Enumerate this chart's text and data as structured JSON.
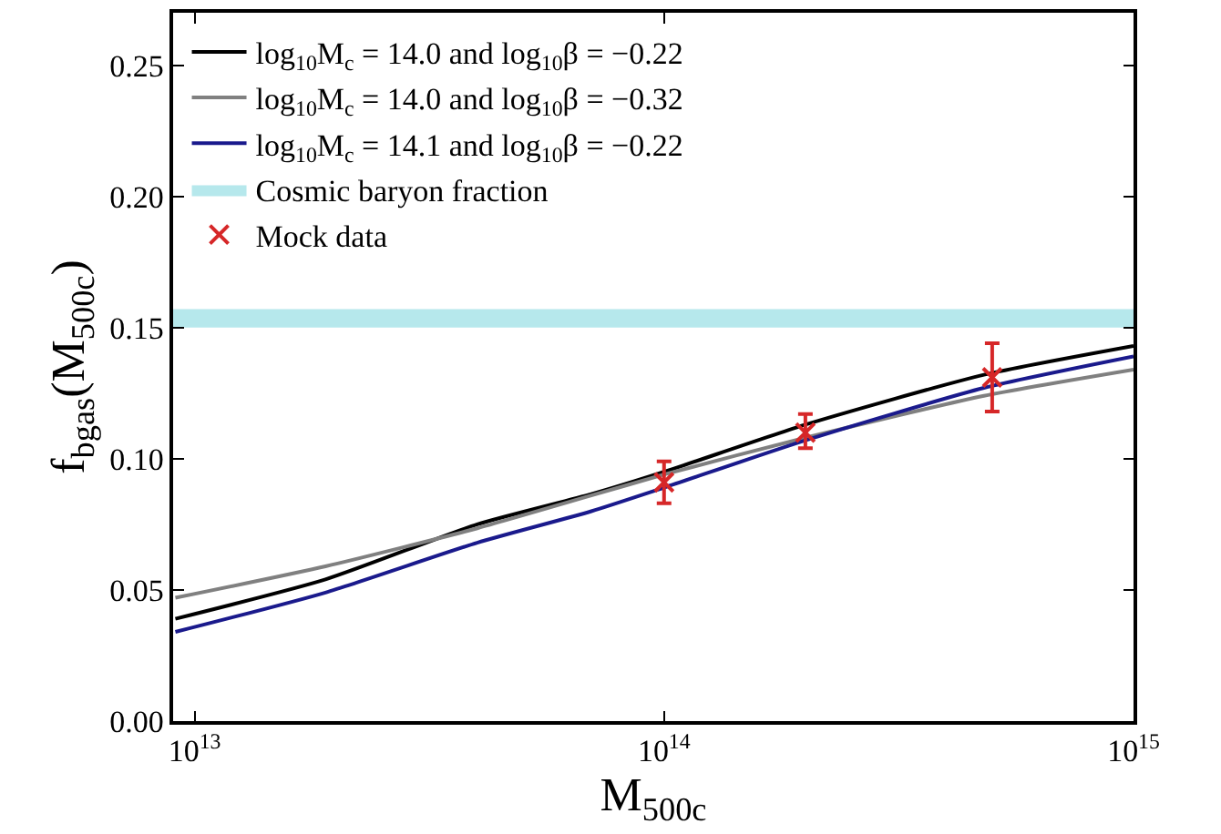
{
  "chart_data": {
    "type": "line",
    "xlabel": "M$_{500c}$",
    "ylabel": "f$_{bgas}$(M$_{500c}$)",
    "log": "x",
    "xlim": [
      9000000000000.0,
      1000000000000000.0
    ],
    "xticks": [
      {
        "value": 10000000000000.0,
        "label": "10$^{13}$"
      },
      {
        "value": 100000000000000.0,
        "label": "10$^{14}$"
      },
      {
        "value": 1000000000000000.0,
        "label": "10$^{15}$"
      }
    ],
    "ylim": [
      0,
      0.27
    ],
    "yticks": [
      {
        "value": 0,
        "label": "0.00"
      },
      {
        "value": 0.05,
        "label": "0.05"
      },
      {
        "value": 0.1,
        "label": "0.10"
      },
      {
        "value": 0.15,
        "label": "0.15"
      },
      {
        "value": 0.2,
        "label": "0.20"
      },
      {
        "value": 0.25,
        "label": "0.25"
      }
    ],
    "legend": "top left",
    "marker": "none",
    "line_style": "solid",
    "x": [
      9100000000000.0,
      19000000000000.0,
      40000000000000.0,
      70000000000000.0,
      100000000000000.0,
      200000000000000.0,
      480000000000000.0,
      1000000000000000.0
    ],
    "series": [
      {
        "name": "log$_{10}$M$_{c}$ = 14.0 and log$_{10}$β = −0.22",
        "color": "#000000",
        "values": [
          0.039,
          0.054,
          0.075,
          0.0865,
          0.095,
          0.113,
          0.132,
          0.143
        ]
      },
      {
        "name": "log$_{10}$M$_{c}$ = 14.0 and log$_{10}$β = −0.32",
        "color": "#808080",
        "values": [
          0.047,
          0.059,
          0.0735,
          0.086,
          0.094,
          0.108,
          0.124,
          0.134
        ]
      },
      {
        "name": "log$_{10}$M$_{c}$ = 14.1 and log$_{10}$β = −0.22",
        "color": "#1a1a8c",
        "values": [
          0.034,
          0.049,
          0.068,
          0.08,
          0.089,
          0.107,
          0.127,
          0.139
        ]
      },
      {
        "name": "Mock data",
        "type": "scatter",
        "marker": "cross",
        "color": "#d62728",
        "x": [
          100000000000000.0,
          200000000000000.0,
          500000000000000.0
        ],
        "values": [
          0.091,
          0.11,
          0.131
        ],
        "errors": [
          [
            0.083,
            0.099
          ],
          [
            0.104,
            0.117
          ],
          [
            0.118,
            0.144
          ]
        ]
      }
    ],
    "bands": [
      {
        "axis": "y",
        "from": 0.15,
        "to": 0.157,
        "label": "Cosmic baryon fraction",
        "color": "#b6e8ec"
      }
    ]
  }
}
